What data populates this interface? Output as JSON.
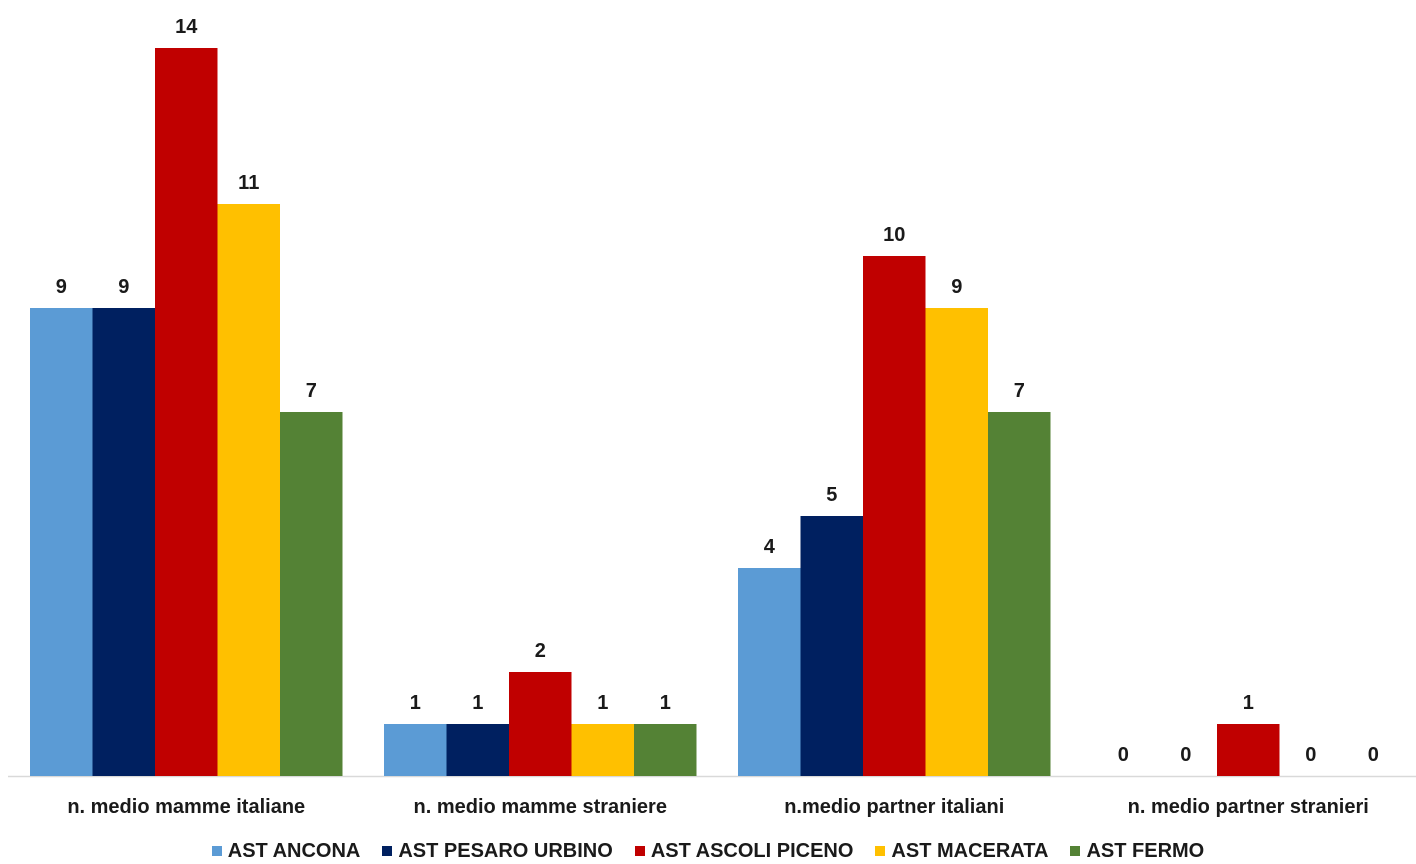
{
  "chart_data": {
    "type": "bar",
    "categories": [
      "n. medio mamme italiane",
      "n. medio mamme straniere",
      "n.medio partner italiani",
      "n. medio partner stranieri"
    ],
    "series": [
      {
        "name": "AST ANCONA",
        "color": "#5b9bd5",
        "values": [
          9,
          1,
          4,
          0
        ]
      },
      {
        "name": "AST PESARO URBINO",
        "color": "#002060",
        "values": [
          9,
          1,
          5,
          0
        ]
      },
      {
        "name": "AST ASCOLI PICENO",
        "color": "#c00000",
        "values": [
          14,
          2,
          10,
          1
        ]
      },
      {
        "name": "AST MACERATA",
        "color": "#ffc000",
        "values": [
          11,
          1,
          9,
          0
        ]
      },
      {
        "name": "AST FERMO",
        "color": "#548235",
        "values": [
          7,
          1,
          7,
          0
        ]
      }
    ],
    "ylim": [
      0,
      14
    ],
    "grid": false,
    "data_labels": true,
    "legend_position": "bottom"
  }
}
